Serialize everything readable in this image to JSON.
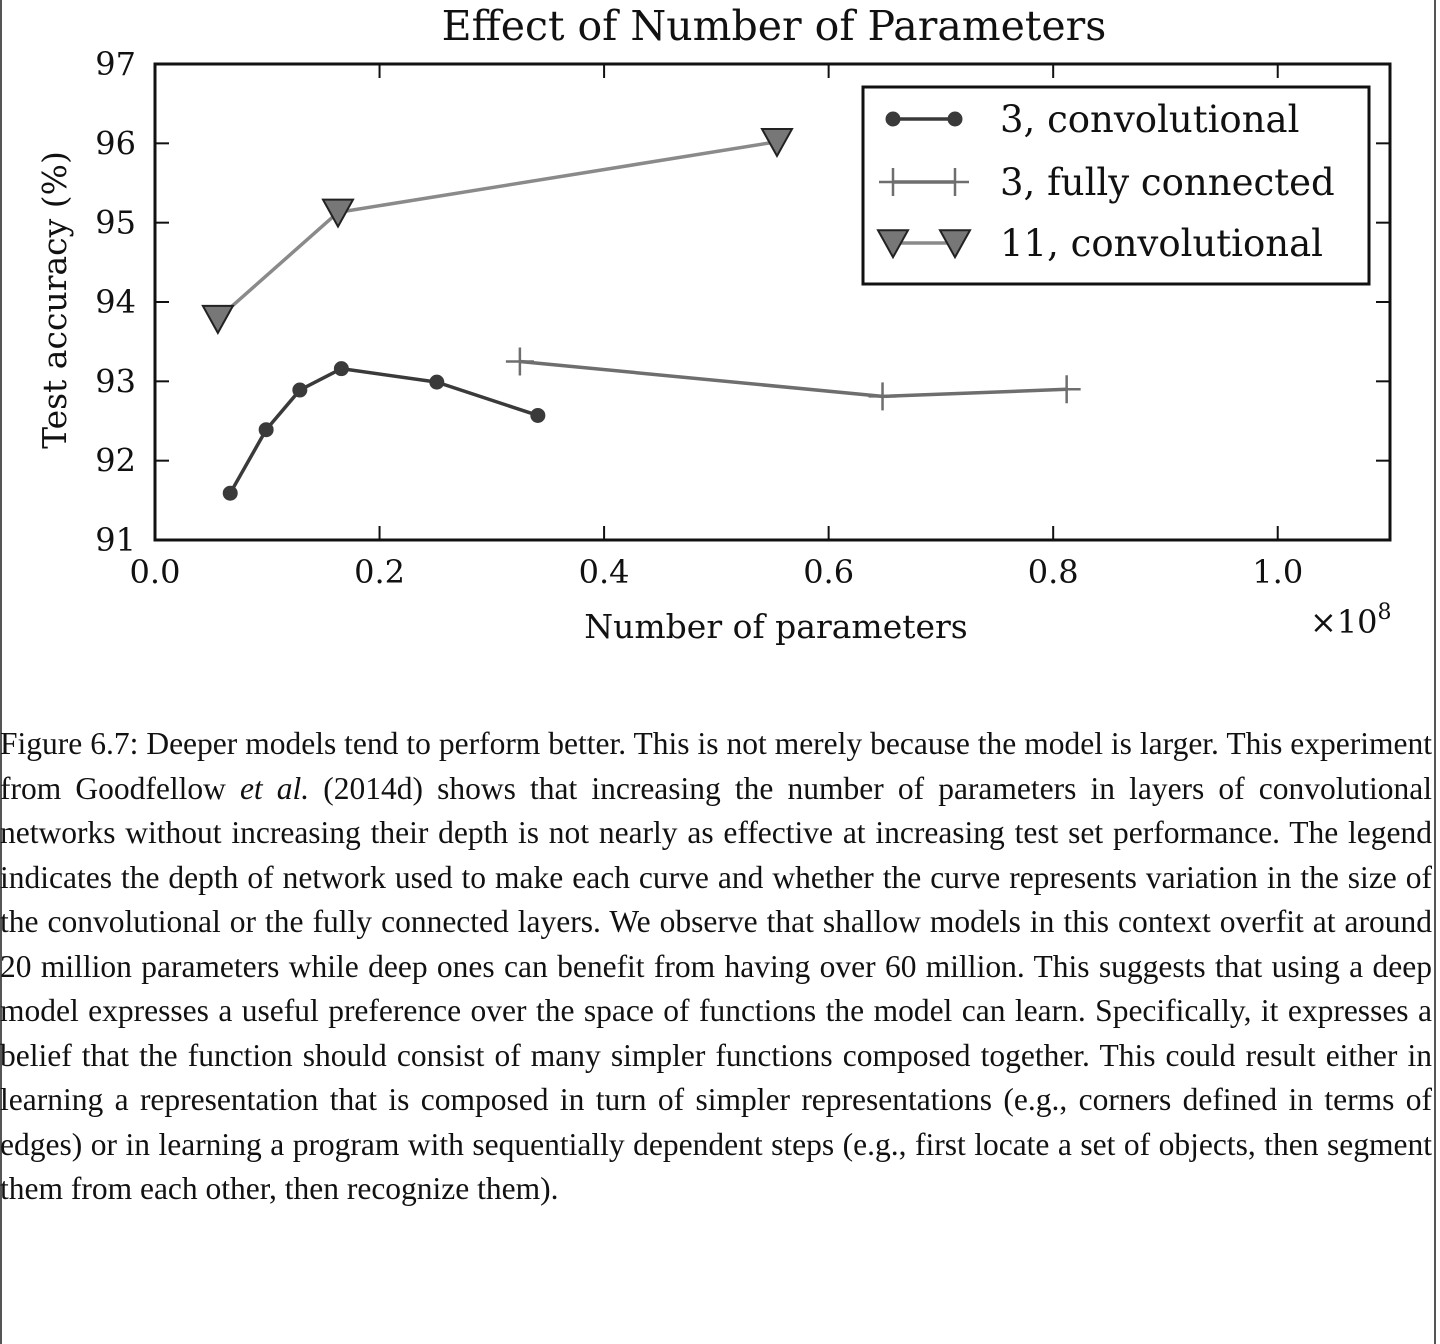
{
  "chart_data": {
    "type": "line",
    "title": "Effect of Number of Parameters",
    "xlabel": "Number of parameters",
    "ylabel": "Test accuracy (%)",
    "x_multiplier": "×10",
    "x_multiplier_exponent": "8",
    "xlim": [
      0.0,
      1.1
    ],
    "ylim": [
      91,
      97
    ],
    "xticks": [
      0.0,
      0.2,
      0.4,
      0.6,
      0.8,
      1.0
    ],
    "xtick_labels": [
      "0.0",
      "0.2",
      "0.4",
      "0.6",
      "0.8",
      "1.0"
    ],
    "yticks": [
      91,
      92,
      93,
      94,
      95,
      96,
      97
    ],
    "ytick_labels": [
      "91",
      "92",
      "93",
      "94",
      "95",
      "96",
      "97"
    ],
    "grid": false,
    "legend_position": "top-right",
    "series": [
      {
        "name": "3, convolutional",
        "marker": "circle",
        "color": "#3a3a3a",
        "x": [
          0.067,
          0.099,
          0.129,
          0.166,
          0.251,
          0.341
        ],
        "y": [
          91.59,
          92.39,
          92.89,
          93.16,
          92.99,
          92.57
        ]
      },
      {
        "name": "3, fully connected",
        "marker": "plus",
        "color": "#6e6e6e",
        "x": [
          0.325,
          0.648,
          0.812
        ],
        "y": [
          93.25,
          92.81,
          92.9
        ]
      },
      {
        "name": "11, convolutional",
        "marker": "triangle-down",
        "color": "#8a8a8a",
        "x": [
          0.056,
          0.163,
          0.554
        ],
        "y": [
          93.79,
          95.13,
          96.02
        ]
      }
    ]
  },
  "caption": {
    "label": "Figure 6.7:",
    "text_before_italic": " Deeper models tend to perform better. This is not merely because the model is larger. This experiment from Goodfellow ",
    "italic": "et al.",
    "text_after_italic": " (2014d) shows that increasing the number of parameters in layers of convolutional networks without increasing their depth is not nearly as effective at increasing test set performance. The legend indicates the depth of network used to make each curve and whether the curve represents variation in the size of the convolutional or the fully connected layers. We observe that shallow models in this context overfit at around 20 million parameters while deep ones can benefit from having over 60 million. This suggests that using a deep model expresses a useful preference over the space of functions the model can learn. Specifically, it expresses a belief that the function should consist of many simpler functions composed together. This could result either in learning a representation that is composed in turn of simpler representations (e.g., corners defined in terms of edges) or in learning a program with sequentially dependent steps (e.g., first locate a set of objects, then segment them from each other, then recognize them)."
  }
}
